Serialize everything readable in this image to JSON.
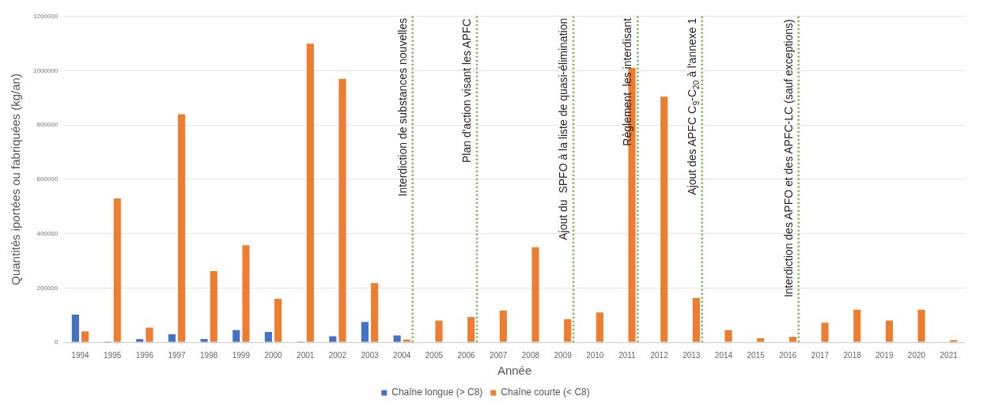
{
  "chart_data": {
    "type": "bar",
    "xlabel": "Année",
    "ylabel": "Quantités iportées ou fabriquées (kg/an)",
    "categories": [
      "1994",
      "1995",
      "1996",
      "1997",
      "1998",
      "1999",
      "2000",
      "2001",
      "2002",
      "2003",
      "2004",
      "2005",
      "2006",
      "2007",
      "2008",
      "2009",
      "2010",
      "2011",
      "2012",
      "2013",
      "2014",
      "2015",
      "2016",
      "2017",
      "2018",
      "2019",
      "2020",
      "2021"
    ],
    "series": [
      {
        "name": "Chaîne longue (> C8)",
        "color": "#4472c4",
        "values": [
          102000,
          3000,
          12000,
          30000,
          12000,
          45000,
          38000,
          3000,
          22000,
          75000,
          25000,
          null,
          null,
          null,
          null,
          null,
          null,
          null,
          null,
          null,
          null,
          null,
          null,
          null,
          null,
          null,
          null,
          null
        ]
      },
      {
        "name": "Chaîne courte (< C8)",
        "color": "#ed7d31",
        "values": [
          40000,
          530000,
          54000,
          840000,
          262000,
          357000,
          160000,
          1100000,
          970000,
          218000,
          10000,
          80000,
          93000,
          117000,
          350000,
          85000,
          110000,
          1010000,
          905000,
          163000,
          45000,
          15000,
          20000,
          72000,
          120000,
          80000,
          120000,
          8000
        ]
      }
    ],
    "ylim": [
      0,
      1200000
    ],
    "yticks": [
      0,
      200000,
      400000,
      600000,
      800000,
      1000000,
      1200000
    ],
    "grid": "y",
    "legend": "bottom",
    "ref_lines": [
      {
        "axis": "x",
        "value": "2004",
        "label": "Interdiction de substances nouvelles",
        "color": "#70ad47",
        "line_style": "dotted"
      },
      {
        "axis": "x",
        "value": "2006",
        "label": "Plan d'action visant les APFC",
        "color": "#70ad47",
        "line_style": "dotted"
      },
      {
        "axis": "x",
        "value": "2009",
        "label": "Ajout du  SPFO à la liste de quasi-élimination",
        "color": "#70ad47",
        "line_style": "dotted"
      },
      {
        "axis": "x",
        "value": "2011",
        "label": "Règlement  les interdisant",
        "color": "#70ad47",
        "line_style": "dotted"
      },
      {
        "axis": "x",
        "value": "2013",
        "label": "Ajout des APFC C$_{9}$-C$_{20}$ à l'annexe 1",
        "color": "#70ad47",
        "line_style": "dotted"
      },
      {
        "axis": "x",
        "value": "2016",
        "label": "Interdiction des APFO et des APFC-LC (sauf exceptions)",
        "color": "#70ad47",
        "line_style": "dotted"
      }
    ]
  }
}
